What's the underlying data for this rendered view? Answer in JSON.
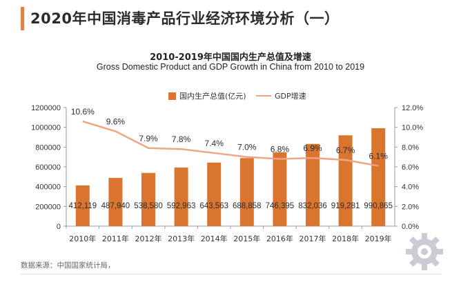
{
  "header": {
    "title": "2020年中国消毒产品行业经济环境分析（一）",
    "accent_color": "#e0804a"
  },
  "chart_data": {
    "type": "bar",
    "title": "2010-2019年中国国内生产总值及增速",
    "subtitle": "Gross Domestic Product and GDP Growth in China from 2010 to 2019",
    "categories": [
      "2010年",
      "2011年",
      "2012年",
      "2013年",
      "2014年",
      "2015年",
      "2016年",
      "2017年",
      "2018年",
      "2019年"
    ],
    "series": [
      {
        "name": "国内生产总值(亿元)",
        "kind": "bar",
        "axis": "left",
        "color": "#d9752f",
        "values": [
          412119,
          487940,
          538580,
          592963,
          643563,
          688858,
          746395,
          832036,
          919281,
          990865
        ],
        "labels": [
          "412,119",
          "487,940",
          "538,580",
          "592,963",
          "643,563",
          "688,858",
          "746,395",
          "832,036",
          "919,281",
          "990,865"
        ]
      },
      {
        "name": "GDP增速",
        "kind": "line",
        "axis": "right",
        "color": "#f0a582",
        "values": [
          10.6,
          9.6,
          7.9,
          7.8,
          7.4,
          7.0,
          6.8,
          6.9,
          6.7,
          6.1
        ],
        "labels": [
          "10.6%",
          "9.6%",
          "7.9%",
          "7.8%",
          "7.4%",
          "7.0%",
          "6.8%",
          "6.9%",
          "6.7%",
          "6.1%"
        ]
      }
    ],
    "left_axis": {
      "range": [
        0,
        1200000
      ],
      "ticks": [
        "0",
        "200000",
        "400000",
        "600000",
        "800000",
        "1000000",
        "1200000"
      ]
    },
    "right_axis": {
      "range": [
        0,
        12
      ],
      "ticks": [
        "0.0%",
        "2.0%",
        "4.0%",
        "6.0%",
        "8.0%",
        "10.0%",
        "12.0%"
      ]
    },
    "legend_position": "top-center",
    "grid": false
  },
  "footer": {
    "source": "数据来源：中国国家统计局，"
  },
  "colors": {
    "axis": "#999999",
    "text": "#333333"
  }
}
